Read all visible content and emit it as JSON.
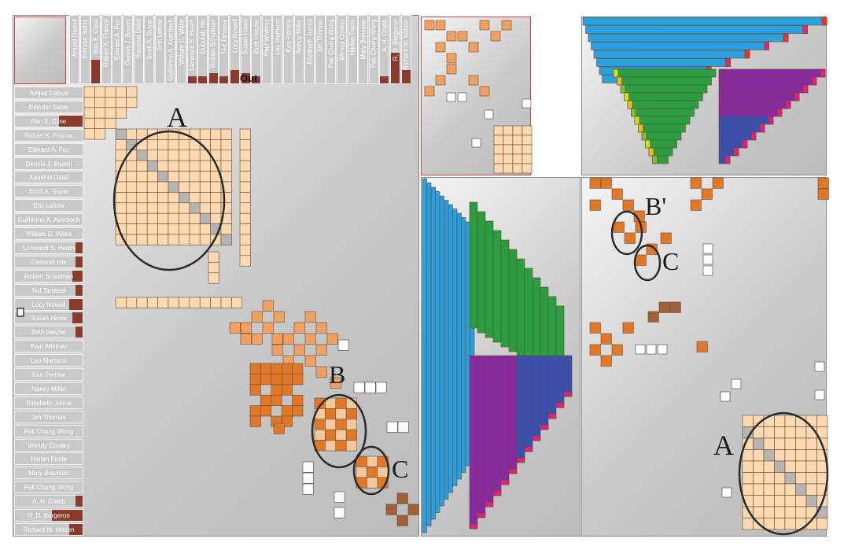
{
  "figure": {
    "out_label": "Out",
    "annotations": {
      "a": "A",
      "b": "B",
      "c": "C",
      "b_prime": "B'",
      "c_right": "C",
      "a_right": "A"
    }
  },
  "colors": {
    "brand_bar": "#8b3a2e",
    "light_cell": "#fcd9b0",
    "mid_cell": "#f0a060",
    "dark_cell": "#e07828",
    "brown_cell": "#a0603a",
    "grey_cell": "#b4b4b4",
    "ellipse": "#2a2a2a"
  },
  "chart_data": {
    "type": "heatmap",
    "row_labels": [
      "Amjad Daoud",
      "Edinder Sahle",
      "Ben E. Cline",
      "Robert K. France",
      "Edward A. Fox",
      "Dennis J. Brueni",
      "Kaushal Dalal",
      "Scott A. Guyer",
      "Eric Labow",
      "Guillermo A. Averboch",
      "William C. Wake",
      "Lenwood S. Heath",
      "Deborah Hix",
      "Robert Schulman",
      "Ted Tanasse",
      "Lucy Nowell",
      "Susan Hawe",
      "Beth Hetzler",
      "Paul Whitney",
      "Lou Martucci",
      "Ken Perrine",
      "Nancy Miller",
      "Elizabeth Jurrus",
      "Jim Thomas",
      "Pak Chung Wong",
      "Wendy Cowley",
      "Harlan Foote",
      "Mary Brewster",
      "Pak Chung Wong",
      "A. H. Crabb",
      "R. D. Bergeron",
      "Richard M. Wilson"
    ],
    "column_labels_visible": [
      "Amjad Daoud",
      "Edinder Sahle",
      "Ben E. Cline",
      "Robert K. France",
      "Edward A. Fox",
      "Dennis J. Brueni",
      "Kaushal Dalal",
      "Scott A. Guyer",
      "Eric Labow",
      "Guillermo A. Averboch",
      "William C. Wake",
      "Lenwood S. Heath",
      "Deborah Hix",
      "Robert Schulman",
      "Ted Tanasse",
      "Lucy Nowell",
      "Susan Hawe",
      "Beth Hetzler",
      "Paul Whitney",
      "Lou Martucci",
      "Ken Perrine",
      "Nancy Miller",
      "Elizabeth Jurrus",
      "Jim Thomas",
      "Pak Chung Wong",
      "Wendy Cowley",
      "Harlan Foote",
      "Mary Brewster",
      "Pak Chung Wong",
      "A. H. Crabb",
      "R. D. Bergeron",
      "Richard M. Wilson"
    ],
    "row_bar_fraction": [
      0,
      0,
      0.35,
      0,
      0,
      0,
      0,
      0,
      0,
      0,
      0,
      0.1,
      0.1,
      0.15,
      0.1,
      0.2,
      0.15,
      0.1,
      0,
      0,
      0,
      0,
      0,
      0,
      0,
      0,
      0,
      0,
      0,
      0.1,
      0.45,
      0.2
    ],
    "rainbow_counts_top": [
      40,
      38,
      36,
      34,
      32,
      30,
      28,
      26,
      24
    ],
    "rainbow_counts_left": [
      26,
      24,
      22,
      20,
      18,
      16,
      14,
      12,
      10,
      8,
      6,
      4
    ],
    "grid_on": false,
    "legend": "none"
  }
}
